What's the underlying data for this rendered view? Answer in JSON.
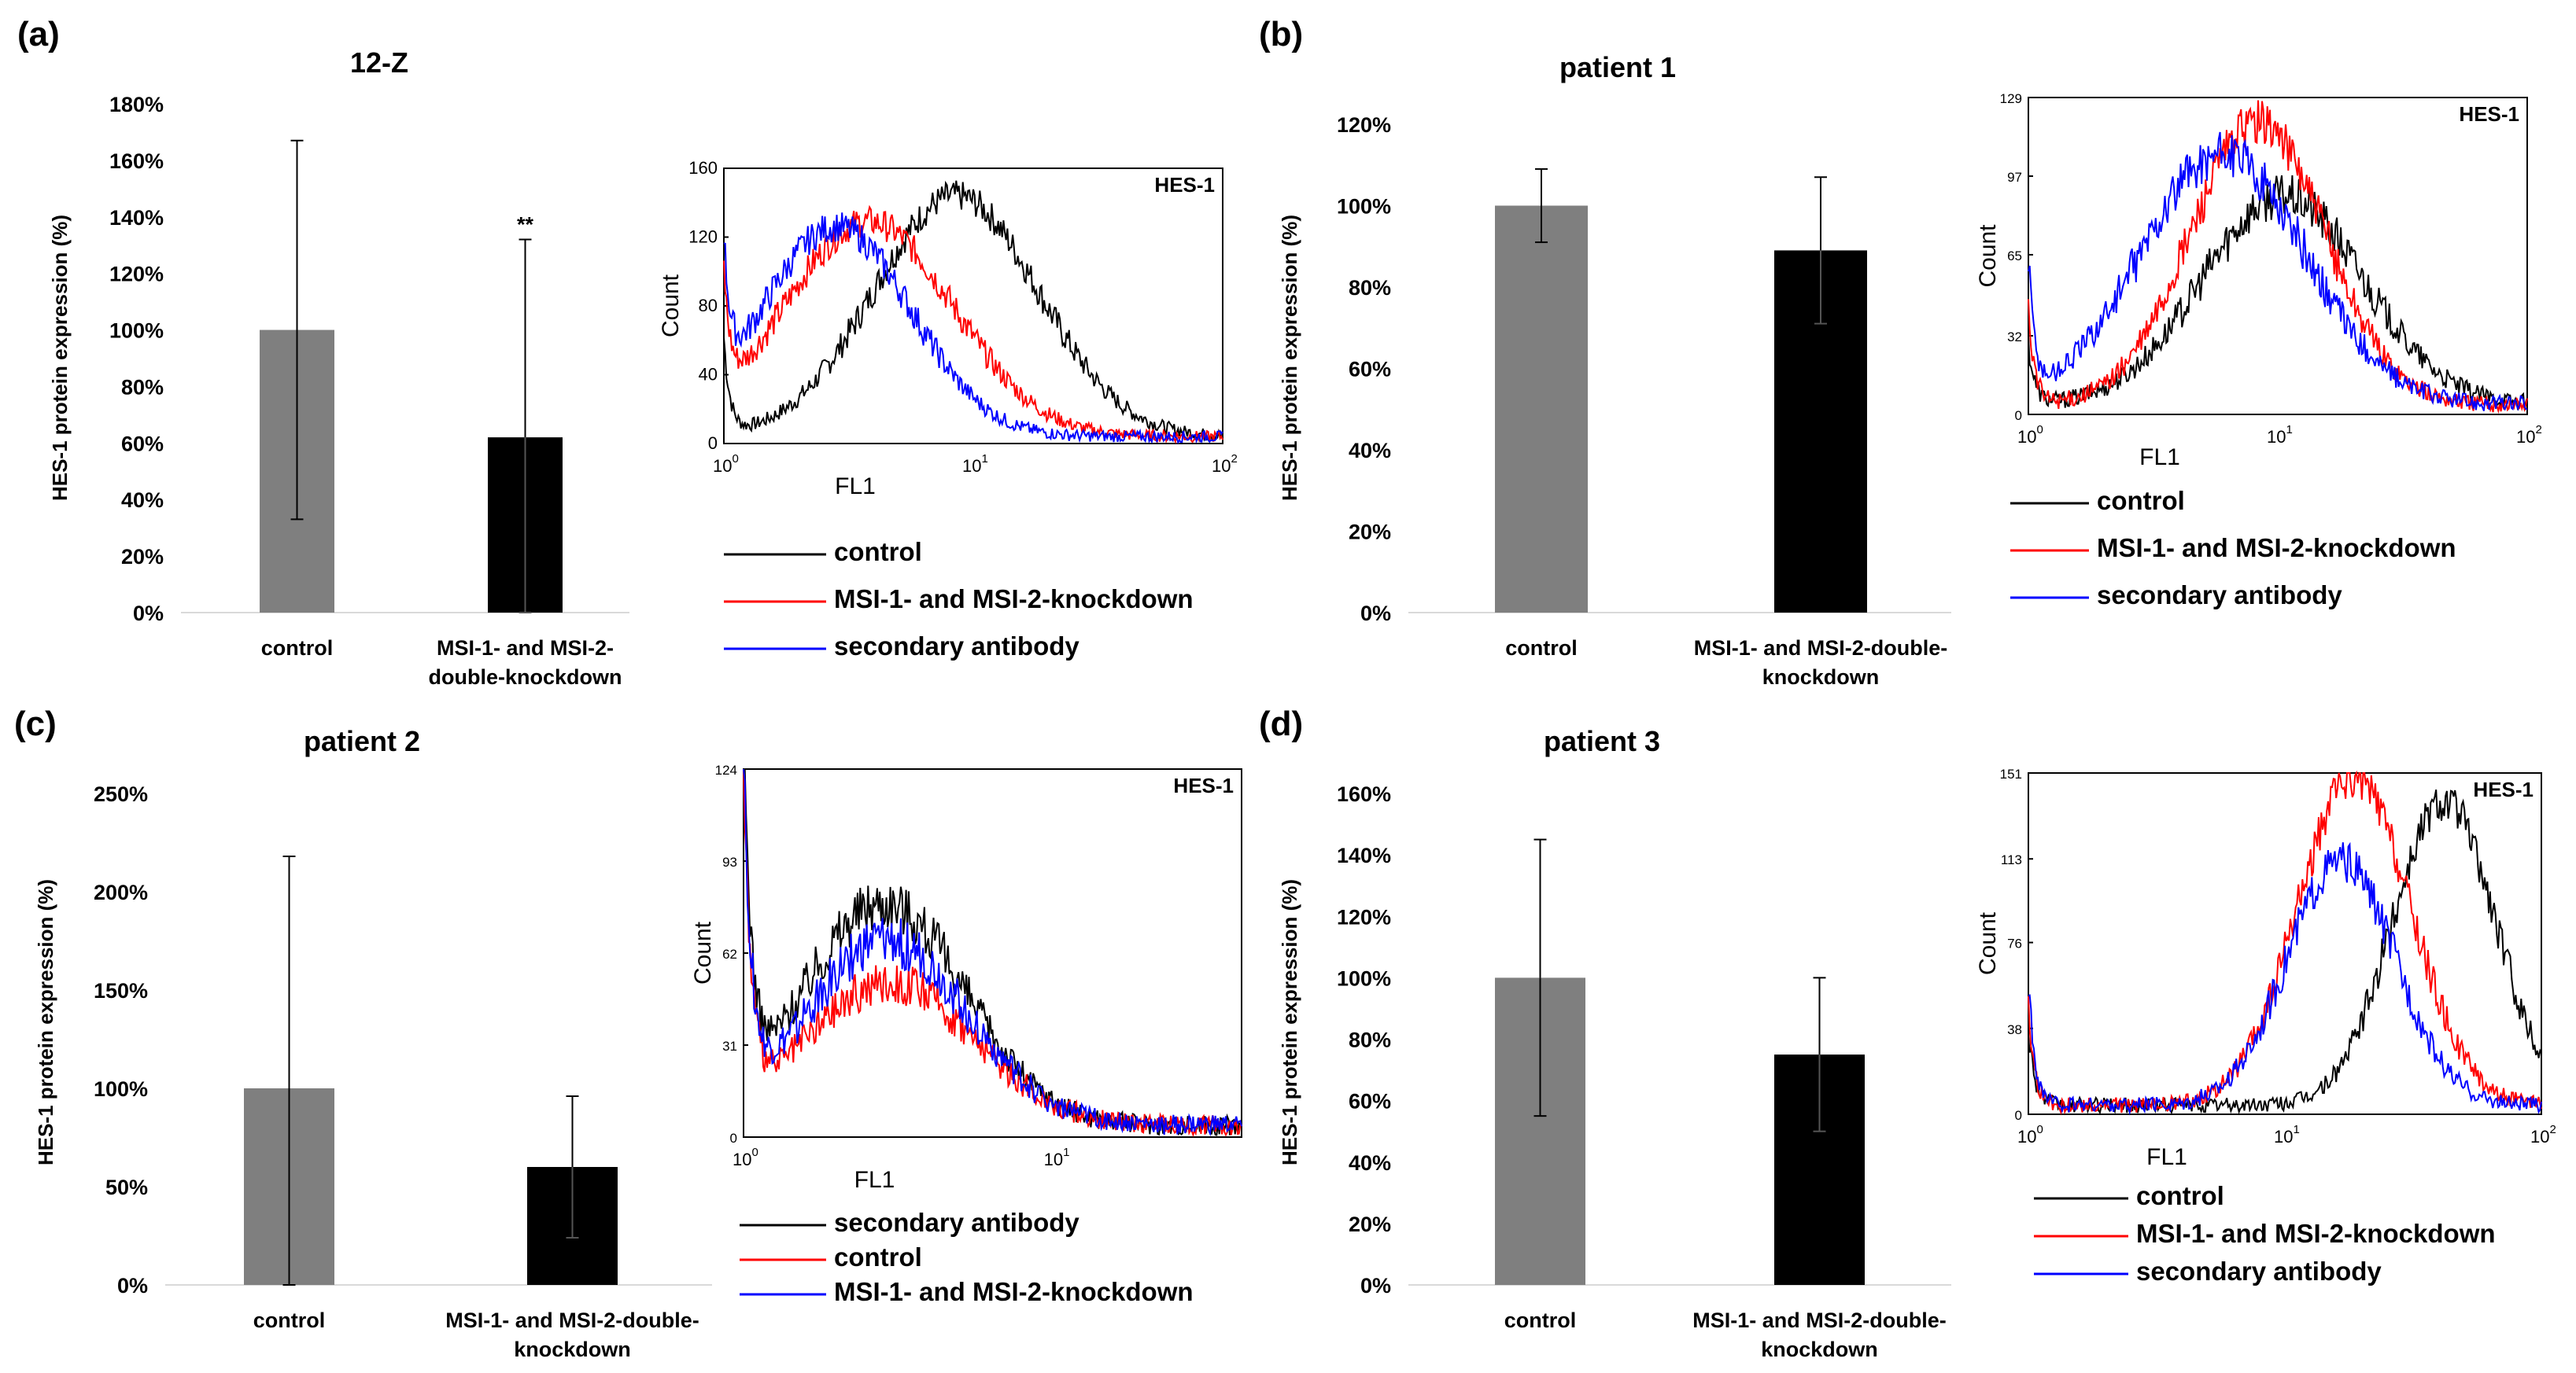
{
  "figure": {
    "panels": [
      {
        "label": "(a)",
        "bar_chart": {
          "type": "bar",
          "title": "12-Z",
          "ylabel": "HES-1 protein expression (%)",
          "ylim": [
            0,
            180
          ],
          "yticks": [
            "0%",
            "20%",
            "40%",
            "60%",
            "80%",
            "100%",
            "120%",
            "140%",
            "160%",
            "180%"
          ],
          "ytick_values": [
            0,
            20,
            40,
            60,
            80,
            100,
            120,
            140,
            160,
            180
          ],
          "categories": [
            "control",
            "MSI-1- and MSI-2-double-knockdown"
          ],
          "category_lines": [
            [
              "control"
            ],
            [
              "MSI-1- and MSI-2-",
              "double-knockdown"
            ]
          ],
          "values": [
            100,
            62
          ],
          "errors": [
            67,
            70
          ],
          "annotations": [
            "",
            "**"
          ],
          "colors": [
            "#7f7f7f",
            "#000000"
          ]
        },
        "flow_chart": {
          "type": "line",
          "tag": "HES-1",
          "xlabel": "FL1",
          "ylabel": "Count",
          "ymax": 160,
          "yticks": [
            "0",
            "40",
            "80",
            "120",
            "160"
          ],
          "xticks": [
            "10",
            "10",
            "10"
          ],
          "xtick_exponents": [
            "0",
            "1",
            "2"
          ],
          "xlim_log": [
            0,
            2
          ],
          "series": [
            {
              "name": "control",
              "color": "#000000",
              "peak_log": 0.93,
              "sigma": 0.33,
              "peak": 140,
              "left_spike": 55
            },
            {
              "name": "MSI-1- and MSI-2-knockdown",
              "color": "#ff0000",
              "peak_log": 0.58,
              "sigma": 0.34,
              "peak": 125,
              "left_spike": 70
            },
            {
              "name": "secondary antibody",
              "color": "#0000ff",
              "peak_log": 0.45,
              "sigma": 0.3,
              "peak": 122,
              "left_spike": 80
            }
          ],
          "legend": [
            "control",
            "MSI-1- and MSI-2-knockdown",
            "secondary antibody"
          ]
        }
      },
      {
        "label": "(b)",
        "bar_chart": {
          "type": "bar",
          "title": "patient 1",
          "ylabel": "HES-1 protein expression (%)",
          "ylim": [
            0,
            120
          ],
          "yticks": [
            "0%",
            "20%",
            "40%",
            "60%",
            "80%",
            "100%",
            "120%"
          ],
          "ytick_values": [
            0,
            20,
            40,
            60,
            80,
            100,
            120
          ],
          "categories": [
            "control",
            "MSI-1- and MSI-2-double-knockdown"
          ],
          "category_lines": [
            [
              "control"
            ],
            [
              "MSI-1- and MSI-2-double-",
              "knockdown"
            ]
          ],
          "values": [
            100,
            89
          ],
          "errors": [
            9,
            18
          ],
          "annotations": [
            "",
            ""
          ],
          "colors": [
            "#7f7f7f",
            "#000000"
          ]
        },
        "flow_chart": {
          "type": "line",
          "tag": "HES-1",
          "xlabel": "FL1",
          "ylabel": "Count",
          "ymax": 129,
          "yticks": [
            "0",
            "32",
            "65",
            "97",
            "129"
          ],
          "xticks": [
            "10",
            "10",
            "10"
          ],
          "xtick_exponents": [
            "0",
            "1",
            "2"
          ],
          "xlim_log": [
            0,
            2
          ],
          "series": [
            {
              "name": "control",
              "color": "#000000",
              "peak_log": 1.02,
              "sigma": 0.32,
              "peak": 85,
              "left_spike": 25
            },
            {
              "name": "MSI-1- and MSI-2-knockdown",
              "color": "#ff0000",
              "peak_log": 0.92,
              "sigma": 0.27,
              "peak": 115,
              "left_spike": 40
            },
            {
              "name": "secondary antibody",
              "color": "#0000ff",
              "peak_log": 0.78,
              "sigma": 0.33,
              "peak": 102,
              "left_spike": 55
            }
          ],
          "legend": [
            "control",
            "MSI-1- and MSI-2-knockdown",
            "secondary antibody"
          ]
        }
      },
      {
        "label": "(c)",
        "bar_chart": {
          "type": "bar",
          "title": "patient 2",
          "ylabel": "HES-1 protein expression (%)",
          "ylim": [
            0,
            250
          ],
          "yticks": [
            "0%",
            "50%",
            "100%",
            "150%",
            "200%",
            "250%"
          ],
          "ytick_values": [
            0,
            50,
            100,
            150,
            200,
            250
          ],
          "categories": [
            "control",
            "MSI-1- and MSI-2-double-knockdown"
          ],
          "category_lines": [
            [
              "control"
            ],
            [
              "MSI-1- and MSI-2-double-",
              "knockdown"
            ]
          ],
          "values": [
            100,
            60
          ],
          "errors": [
            118,
            36
          ],
          "annotations": [
            "",
            ""
          ],
          "colors": [
            "#7f7f7f",
            "#000000"
          ]
        },
        "flow_chart": {
          "type": "line",
          "tag": "HES-1",
          "xlabel": "FL1",
          "ylabel": "Count",
          "ymax": 124,
          "yticks": [
            "0",
            "31",
            "62",
            "93",
            "124"
          ],
          "xticks": [
            "10",
            "10"
          ],
          "xtick_exponents": [
            "0",
            "1"
          ],
          "xlim_log": [
            0,
            1.6
          ],
          "series": [
            {
              "name": "secondary antibody",
              "color": "#000000",
              "peak_log": 0.45,
              "sigma": 0.26,
              "peak": 75,
              "left_spike": 120
            },
            {
              "name": "control",
              "color": "#ff0000",
              "peak_log": 0.47,
              "sigma": 0.27,
              "peak": 48,
              "left_spike": 110
            },
            {
              "name": "MSI-1- and MSI-2-knockdown",
              "color": "#0000ff",
              "peak_log": 0.46,
              "sigma": 0.26,
              "peak": 62,
              "left_spike": 115
            }
          ],
          "legend": [
            "secondary antibody",
            "control",
            "MSI-1- and MSI-2-knockdown"
          ]
        }
      },
      {
        "label": "(d)",
        "bar_chart": {
          "type": "bar",
          "title": "patient 3",
          "ylabel": "HES-1 protein expression (%)",
          "ylim": [
            0,
            160
          ],
          "yticks": [
            "0%",
            "20%",
            "40%",
            "60%",
            "80%",
            "100%",
            "120%",
            "140%",
            "160%"
          ],
          "ytick_values": [
            0,
            20,
            40,
            60,
            80,
            100,
            120,
            140,
            160
          ],
          "categories": [
            "control",
            "MSI-1- and MSI-2-double-knockdown"
          ],
          "category_lines": [
            [
              "control"
            ],
            [
              "MSI-1- and MSI-2-double-",
              "knockdown"
            ]
          ],
          "values": [
            100,
            75
          ],
          "errors": [
            45,
            25
          ],
          "annotations": [
            "",
            ""
          ],
          "colors": [
            "#7f7f7f",
            "#000000"
          ]
        },
        "flow_chart": {
          "type": "line",
          "tag": "HES-1",
          "xlabel": "FL1",
          "ylabel": "Count",
          "ymax": 151,
          "yticks": [
            "0",
            "38",
            "76",
            "113",
            "151"
          ],
          "xticks": [
            "10",
            "10",
            "10"
          ],
          "xtick_exponents": [
            "0",
            "1",
            "2"
          ],
          "xlim_log": [
            0,
            2
          ],
          "series": [
            {
              "name": "control",
              "color": "#000000",
              "peak_log": 1.62,
              "sigma": 0.2,
              "peak": 135,
              "left_spike": 35
            },
            {
              "name": "MSI-1- and MSI-2-knockdown",
              "color": "#ff0000",
              "peak_log": 1.27,
              "sigma": 0.22,
              "peak": 145,
              "left_spike": 45
            },
            {
              "name": "secondary antibody",
              "color": "#0000ff",
              "peak_log": 1.22,
              "sigma": 0.21,
              "peak": 108,
              "left_spike": 55
            }
          ],
          "legend": [
            "control",
            "MSI-1- and MSI-2-knockdown",
            "secondary antibody"
          ]
        }
      }
    ]
  },
  "chart_data": [
    {
      "type": "bar",
      "title": "12-Z",
      "ylabel": "HES-1 protein expression (%)",
      "categories": [
        "control",
        "MSI-1- and MSI-2-double-knockdown"
      ],
      "values": [
        100,
        62
      ],
      "errors": [
        67,
        70
      ],
      "ylim": [
        0,
        180
      ]
    },
    {
      "type": "bar",
      "title": "patient 1",
      "ylabel": "HES-1 protein expression (%)",
      "categories": [
        "control",
        "MSI-1- and MSI-2-double-knockdown"
      ],
      "values": [
        100,
        89
      ],
      "errors": [
        9,
        18
      ],
      "ylim": [
        0,
        120
      ]
    },
    {
      "type": "bar",
      "title": "patient 2",
      "ylabel": "HES-1 protein expression (%)",
      "categories": [
        "control",
        "MSI-1- and MSI-2-double-knockdown"
      ],
      "values": [
        100,
        60
      ],
      "errors": [
        118,
        36
      ],
      "ylim": [
        0,
        250
      ]
    },
    {
      "type": "bar",
      "title": "patient 3",
      "ylabel": "HES-1 protein expression (%)",
      "categories": [
        "control",
        "MSI-1- and MSI-2-double-knockdown"
      ],
      "values": [
        100,
        75
      ],
      "errors": [
        45,
        25
      ],
      "ylim": [
        0,
        160
      ]
    }
  ]
}
